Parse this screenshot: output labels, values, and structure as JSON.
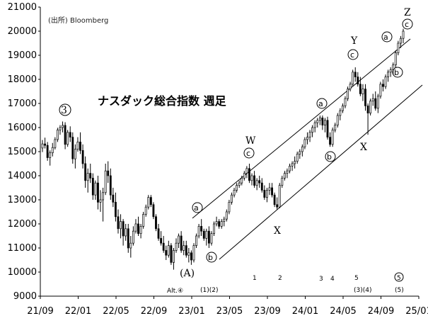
{
  "chart_data": {
    "type": "candlestick",
    "title": "ナスダック総合指数 週足",
    "source": "(出所) Bloomberg",
    "ylim": [
      9000,
      21000
    ],
    "yticks": [
      9000,
      10000,
      11000,
      12000,
      13000,
      14000,
      15000,
      16000,
      17000,
      18000,
      19000,
      20000,
      21000
    ],
    "x_dates": [
      "21/09",
      "22/01",
      "22/05",
      "22/09",
      "23/01",
      "23/05",
      "23/09",
      "24/01",
      "24/05",
      "24/09",
      "25/01"
    ],
    "grid": false,
    "series": [
      {
        "values": [
          [
            15150,
            15480,
            14980,
            15320
          ],
          [
            15320,
            15580,
            15130,
            15260
          ],
          [
            15260,
            15400,
            14620,
            14750
          ],
          [
            14750,
            15050,
            14420,
            14950
          ],
          [
            14950,
            15360,
            14800,
            15170
          ],
          [
            15170,
            15600,
            15090,
            15500
          ],
          [
            15500,
            15990,
            15400,
            15900
          ],
          [
            15900,
            16100,
            15700,
            16000
          ],
          [
            16000,
            16250,
            15800,
            16090
          ],
          [
            16090,
            16220,
            15100,
            15300
          ],
          [
            15300,
            15900,
            15200,
            15800
          ],
          [
            15800,
            16050,
            15400,
            15600
          ],
          [
            15600,
            15800,
            14500,
            14700
          ],
          [
            14700,
            15300,
            14300,
            15100
          ],
          [
            15100,
            15600,
            15000,
            15400
          ],
          [
            15400,
            15800,
            14900,
            15050
          ],
          [
            15050,
            15300,
            14300,
            14500
          ],
          [
            14500,
            14800,
            13500,
            13800
          ],
          [
            13800,
            14300,
            13300,
            14100
          ],
          [
            14100,
            14500,
            13700,
            13900
          ],
          [
            13900,
            14100,
            13000,
            13200
          ],
          [
            13200,
            13800,
            13000,
            13700
          ],
          [
            13700,
            14000,
            12600,
            12900
          ],
          [
            12900,
            13400,
            12500,
            13000
          ],
          [
            13000,
            13500,
            12100,
            13300
          ],
          [
            13300,
            14500,
            13200,
            14200
          ],
          [
            14200,
            14600,
            13700,
            14000
          ],
          [
            14000,
            14300,
            13000,
            13200
          ],
          [
            13200,
            13500,
            12700,
            12900
          ],
          [
            12900,
            13300,
            12100,
            12300
          ],
          [
            12300,
            12600,
            11600,
            11800
          ],
          [
            11800,
            12400,
            11400,
            12100
          ],
          [
            12100,
            12200,
            11100,
            11500
          ],
          [
            11500,
            12000,
            11300,
            11800
          ],
          [
            11800,
            12000,
            10800,
            11000
          ],
          [
            11000,
            11500,
            10600,
            11200
          ],
          [
            11200,
            11900,
            11100,
            11700
          ],
          [
            11700,
            12200,
            11600,
            12000
          ],
          [
            12000,
            12300,
            11500,
            11600
          ],
          [
            11600,
            12000,
            11400,
            11900
          ],
          [
            11900,
            12500,
            11800,
            12400
          ],
          [
            12400,
            12800,
            12300,
            12700
          ],
          [
            12700,
            13200,
            12600,
            13100
          ],
          [
            13100,
            13200,
            12700,
            12800
          ],
          [
            12800,
            12900,
            12200,
            12300
          ],
          [
            12300,
            12400,
            11700,
            11800
          ],
          [
            11800,
            12000,
            11300,
            11400
          ],
          [
            11400,
            11700,
            11100,
            11200
          ],
          [
            11200,
            11500,
            10800,
            10900
          ],
          [
            10900,
            11100,
            10500,
            10700
          ],
          [
            10700,
            11300,
            10600,
            11100
          ],
          [
            11100,
            11200,
            10300,
            10400
          ],
          [
            10400,
            11000,
            10100,
            10900
          ],
          [
            10900,
            11400,
            10800,
            11200
          ],
          [
            11200,
            11600,
            11000,
            11500
          ],
          [
            11500,
            11700,
            10800,
            10900
          ],
          [
            10900,
            11300,
            10700,
            11100
          ],
          [
            11100,
            11300,
            10600,
            10700
          ],
          [
            10700,
            11000,
            10400,
            10800
          ],
          [
            10800,
            10900,
            10300,
            10500
          ],
          [
            10500,
            11200,
            10400,
            11100
          ],
          [
            11100,
            11600,
            11000,
            11500
          ],
          [
            11500,
            12000,
            11400,
            11900
          ],
          [
            11900,
            12200,
            11500,
            11700
          ],
          [
            11700,
            11800,
            11300,
            11400
          ],
          [
            11400,
            11800,
            11100,
            11700
          ],
          [
            11700,
            11900,
            11000,
            11200
          ],
          [
            11200,
            11700,
            11100,
            11600
          ],
          [
            11600,
            12100,
            11500,
            12000
          ],
          [
            12000,
            12300,
            11900,
            12100
          ],
          [
            12100,
            12200,
            11800,
            11900
          ],
          [
            11900,
            12200,
            11800,
            12100
          ],
          [
            12100,
            12300,
            11900,
            12200
          ],
          [
            12200,
            12600,
            12100,
            12500
          ],
          [
            12500,
            13000,
            12400,
            12900
          ],
          [
            12900,
            13300,
            12800,
            13200
          ],
          [
            13200,
            13500,
            13100,
            13400
          ],
          [
            13400,
            13700,
            13300,
            13600
          ],
          [
            13600,
            13800,
            13500,
            13700
          ],
          [
            13700,
            14000,
            13600,
            13900
          ],
          [
            13900,
            14200,
            13800,
            14100
          ],
          [
            14100,
            14400,
            13900,
            14300
          ],
          [
            14300,
            14500,
            13700,
            13800
          ],
          [
            13800,
            14100,
            13600,
            14000
          ],
          [
            14000,
            14200,
            13500,
            13600
          ],
          [
            13600,
            13900,
            13400,
            13800
          ],
          [
            13800,
            14000,
            13500,
            13700
          ],
          [
            13700,
            13900,
            13300,
            13400
          ],
          [
            13400,
            13600,
            13000,
            13100
          ],
          [
            13100,
            13500,
            12900,
            13400
          ],
          [
            13400,
            13700,
            13200,
            13500
          ],
          [
            13500,
            13700,
            13100,
            13200
          ],
          [
            13200,
            13300,
            12700,
            12800
          ],
          [
            12800,
            13100,
            12600,
            12700
          ],
          [
            12700,
            13700,
            12650,
            13600
          ],
          [
            13600,
            14000,
            13500,
            13900
          ],
          [
            13900,
            14200,
            13800,
            14100
          ],
          [
            14100,
            14300,
            13900,
            14200
          ],
          [
            14200,
            14500,
            14100,
            14400
          ],
          [
            14400,
            14600,
            14200,
            14500
          ],
          [
            14500,
            14800,
            14300,
            14600
          ],
          [
            14600,
            15000,
            14500,
            14900
          ],
          [
            14900,
            15100,
            14700,
            15000
          ],
          [
            15000,
            15300,
            14800,
            15200
          ],
          [
            15200,
            15600,
            15100,
            15500
          ],
          [
            15500,
            15800,
            15300,
            15600
          ],
          [
            15600,
            15900,
            15400,
            15800
          ],
          [
            15800,
            16100,
            15600,
            16000
          ],
          [
            16000,
            16300,
            15800,
            16200
          ],
          [
            16200,
            16400,
            16000,
            16300
          ],
          [
            16300,
            16500,
            16100,
            16400
          ],
          [
            16400,
            16500,
            15900,
            16100
          ],
          [
            16100,
            16400,
            15800,
            16300
          ],
          [
            16300,
            16450,
            15500,
            15600
          ],
          [
            15600,
            15800,
            15200,
            15300
          ],
          [
            15300,
            16000,
            15200,
            15900
          ],
          [
            15900,
            16200,
            15800,
            16100
          ],
          [
            16100,
            16600,
            16000,
            16500
          ],
          [
            16500,
            16800,
            16300,
            16700
          ],
          [
            16700,
            17000,
            16600,
            16900
          ],
          [
            16900,
            17300,
            16800,
            17200
          ],
          [
            17200,
            17700,
            17100,
            17600
          ],
          [
            17600,
            17900,
            17500,
            17800
          ],
          [
            17800,
            18400,
            17700,
            18300
          ],
          [
            18300,
            18500,
            17900,
            18100
          ],
          [
            18100,
            18300,
            17700,
            17800
          ],
          [
            17800,
            18100,
            17300,
            17400
          ],
          [
            17400,
            17800,
            17100,
            17600
          ],
          [
            17600,
            17800,
            16700,
            16900
          ],
          [
            16900,
            17000,
            15700,
            16600
          ],
          [
            16600,
            17200,
            16500,
            17100
          ],
          [
            17100,
            17400,
            16900,
            17200
          ],
          [
            17200,
            17500,
            16700,
            16800
          ],
          [
            16800,
            17400,
            16600,
            17300
          ],
          [
            17300,
            17900,
            17200,
            17800
          ],
          [
            17800,
            18000,
            17500,
            17700
          ],
          [
            17700,
            18200,
            17600,
            18100
          ],
          [
            18100,
            18400,
            17900,
            18300
          ],
          [
            18300,
            18500,
            18100,
            18400
          ],
          [
            18400,
            18700,
            18200,
            18600
          ],
          [
            18600,
            19200,
            18500,
            19100
          ],
          [
            19100,
            19600,
            19000,
            19500
          ],
          [
            19500,
            19800,
            19300,
            19700
          ],
          [
            19700,
            20100,
            19500,
            20000
          ]
        ]
      }
    ],
    "annotations": [
      "③",
      "(A)",
      "Alt.④",
      "W",
      "X",
      "Y",
      "Z",
      "ⓐ",
      "ⓑ",
      "ⓒ",
      "1",
      "2",
      "3",
      "4",
      "5",
      "⑤",
      "(1)(2)",
      "(3)(4)",
      "(5)"
    ]
  }
}
